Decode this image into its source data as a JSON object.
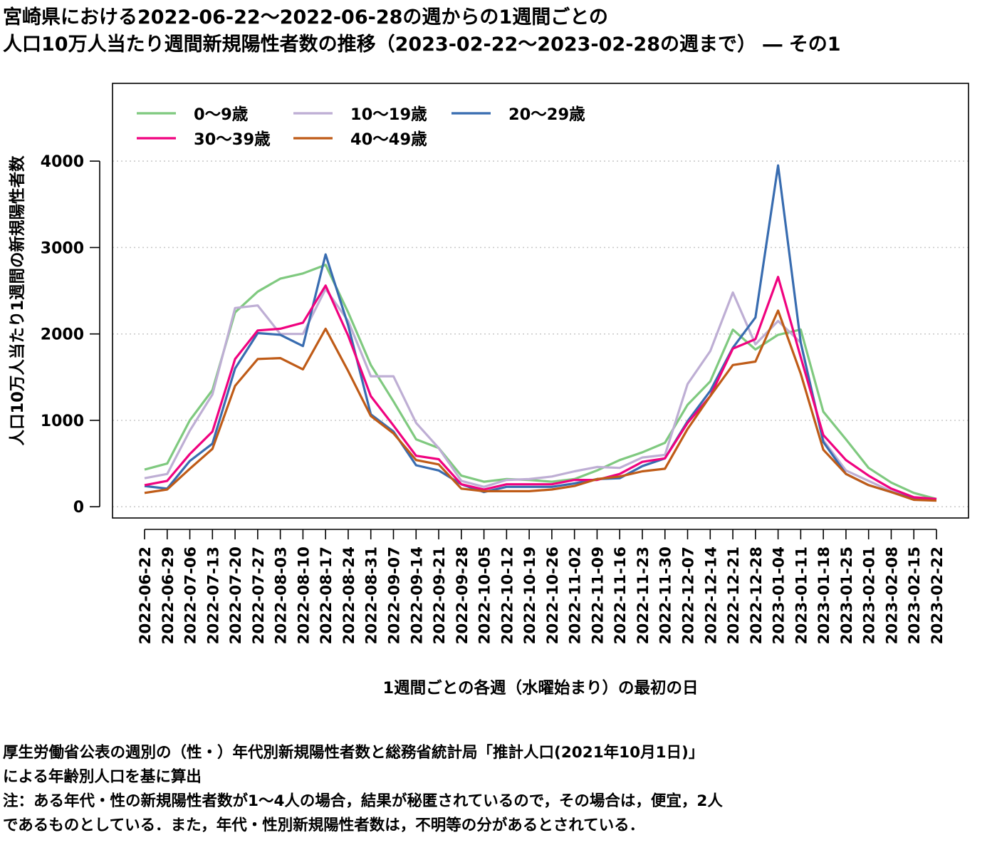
{
  "title_lines": [
    "宮崎県における2022-06-22〜2022-06-28の週からの1週間ごとの",
    "人口10万人当たり週間新規陽性者数の推移（2023-02-22〜2023-02-28の週まで） ― その1"
  ],
  "notes": [
    "厚生労働省公表の週別の（性・）年代別新規陽性者数と総務省統計局「推計人口(2021年10月1日)」",
    "による年齢別人口を基に算出",
    "注：ある年代・性の新規陽性者数が1〜4人の場合，結果が秘匿されているので，その場合は，便宜，2人",
    "であるものとしている．また，年代・性別新規陽性者数は，不明等の分があるとされている．"
  ],
  "chart_data": {
    "type": "line",
    "xlabel": "1週間ごとの各週（水曜始まり）の最初の日",
    "ylabel": "人口10万人当たり1週間の新規陽性者数",
    "ylim": [
      -130,
      4900
    ],
    "yticks": [
      0,
      1000,
      2000,
      3000,
      4000
    ],
    "grid": true,
    "legend_position": "top-left",
    "categories": [
      "2022-06-22",
      "2022-06-29",
      "2022-07-06",
      "2022-07-13",
      "2022-07-20",
      "2022-07-27",
      "2022-08-03",
      "2022-08-10",
      "2022-08-17",
      "2022-08-24",
      "2022-08-31",
      "2022-09-07",
      "2022-09-14",
      "2022-09-21",
      "2022-09-28",
      "2022-10-05",
      "2022-10-12",
      "2022-10-19",
      "2022-10-26",
      "2022-11-02",
      "2022-11-09",
      "2022-11-16",
      "2022-11-23",
      "2022-11-30",
      "2022-12-07",
      "2022-12-14",
      "2022-12-21",
      "2022-12-28",
      "2023-01-04",
      "2023-01-11",
      "2023-01-18",
      "2023-01-25",
      "2023-02-01",
      "2023-02-08",
      "2023-02-15",
      "2023-02-22"
    ],
    "series": [
      {
        "name": "0〜9歳",
        "color": "#7fc97f",
        "values": [
          430,
          500,
          1000,
          1350,
          2250,
          2490,
          2640,
          2700,
          2800,
          2250,
          1640,
          1220,
          780,
          680,
          360,
          290,
          320,
          310,
          290,
          320,
          420,
          540,
          630,
          740,
          1180,
          1450,
          2050,
          1820,
          1990,
          2050,
          1100,
          780,
          450,
          280,
          160,
          90
        ]
      },
      {
        "name": "10〜19歳",
        "color": "#beaed4",
        "values": [
          330,
          380,
          880,
          1300,
          2300,
          2330,
          2000,
          2000,
          2520,
          2150,
          1510,
          1510,
          970,
          680,
          300,
          230,
          310,
          320,
          350,
          410,
          460,
          450,
          570,
          600,
          1420,
          1800,
          2480,
          1880,
          2150,
          1900,
          770,
          420,
          300,
          180,
          100,
          80
        ]
      },
      {
        "name": "20〜29歳",
        "color": "#386cb0",
        "values": [
          240,
          210,
          530,
          730,
          1600,
          2010,
          1990,
          1860,
          2920,
          2100,
          1070,
          870,
          480,
          420,
          260,
          170,
          230,
          230,
          230,
          270,
          320,
          330,
          470,
          560,
          990,
          1340,
          1840,
          2190,
          3950,
          1900,
          750,
          380,
          250,
          170,
          90,
          80
        ]
      },
      {
        "name": "30〜39歳",
        "color": "#f0027f",
        "values": [
          250,
          300,
          610,
          870,
          1710,
          2040,
          2060,
          2130,
          2560,
          1980,
          1280,
          940,
          590,
          550,
          260,
          200,
          260,
          260,
          260,
          310,
          310,
          380,
          520,
          560,
          970,
          1280,
          1830,
          1940,
          2660,
          1730,
          830,
          540,
          360,
          210,
          110,
          90
        ]
      },
      {
        "name": "40〜49歳",
        "color": "#bf5b17",
        "values": [
          160,
          200,
          440,
          670,
          1400,
          1710,
          1720,
          1590,
          2060,
          1570,
          1050,
          850,
          540,
          490,
          210,
          180,
          180,
          180,
          200,
          240,
          320,
          350,
          410,
          440,
          900,
          1280,
          1640,
          1680,
          2270,
          1540,
          660,
          380,
          250,
          170,
          80,
          70
        ]
      }
    ]
  }
}
